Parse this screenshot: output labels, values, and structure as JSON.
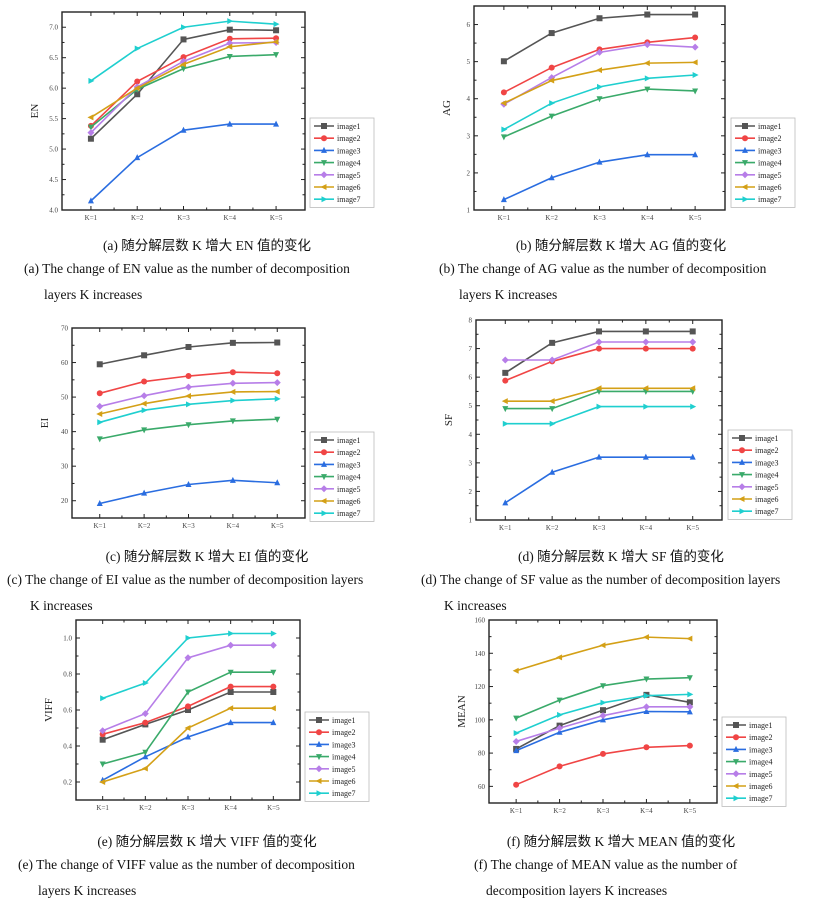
{
  "series_colors": {
    "image1": "#555555",
    "image2": "#f04545",
    "image3": "#2a6de0",
    "image4": "#3aaa6a",
    "image5": "#b77ee8",
    "image6": "#d4a017",
    "image7": "#1fcfcf"
  },
  "series_markers": {
    "image1": "square",
    "image2": "circle",
    "image3": "triangle-up",
    "image4": "triangle-down",
    "image5": "diamond",
    "image6": "triangle-left",
    "image7": "triangle-right"
  },
  "chart_data": [
    {
      "id": "a",
      "type": "line",
      "categories": [
        "K=1",
        "K=2",
        "K=3",
        "K=4",
        "K=5"
      ],
      "ylabel": "EN",
      "xlabel": "",
      "ylim": [
        4.0,
        7.25
      ],
      "yticks": [
        4.0,
        4.5,
        5.0,
        5.5,
        6.0,
        6.5,
        7.0
      ],
      "ytick_labels": [
        "4.0",
        "4.5",
        "5.0",
        "5.5",
        "6.0",
        "6.5",
        "7.0"
      ],
      "legend": "right-bottom-outside",
      "series": [
        {
          "name": "image1",
          "values": [
            5.17,
            5.9,
            6.8,
            6.96,
            6.95
          ]
        },
        {
          "name": "image2",
          "values": [
            5.38,
            6.11,
            6.51,
            6.81,
            6.82
          ]
        },
        {
          "name": "image3",
          "values": [
            4.15,
            4.86,
            5.31,
            5.41,
            5.41
          ]
        },
        {
          "name": "image4",
          "values": [
            5.36,
            5.98,
            6.32,
            6.52,
            6.55
          ]
        },
        {
          "name": "image5",
          "values": [
            5.27,
            6.02,
            6.44,
            6.74,
            6.75
          ]
        },
        {
          "name": "image6",
          "values": [
            5.52,
            6.0,
            6.39,
            6.68,
            6.76
          ]
        },
        {
          "name": "image7",
          "values": [
            6.12,
            6.65,
            7.0,
            7.1,
            7.05
          ]
        }
      ],
      "caption_zh": "(a)  随分解层数 K 增大 EN 值的变化",
      "caption_en_line1": "(a) The change of EN value as the number of decomposition",
      "caption_en_line2": "layers K increases"
    },
    {
      "id": "b",
      "type": "line",
      "categories": [
        "K=1",
        "K=2",
        "K=3",
        "K=4",
        "K=5"
      ],
      "ylabel": "AG",
      "xlabel": "",
      "ylim": [
        1,
        6.5
      ],
      "yticks": [
        1,
        2,
        3,
        4,
        5,
        6
      ],
      "ytick_labels": [
        "1",
        "2",
        "3",
        "4",
        "5",
        "6"
      ],
      "legend": "right-bottom-outside",
      "series": [
        {
          "name": "image1",
          "values": [
            5.01,
            5.77,
            6.17,
            6.27,
            6.27
          ]
        },
        {
          "name": "image2",
          "values": [
            4.17,
            4.84,
            5.33,
            5.52,
            5.65
          ]
        },
        {
          "name": "image3",
          "values": [
            1.28,
            1.87,
            2.29,
            2.49,
            2.49
          ]
        },
        {
          "name": "image4",
          "values": [
            2.97,
            3.53,
            4.0,
            4.26,
            4.21
          ]
        },
        {
          "name": "image5",
          "values": [
            3.85,
            4.57,
            5.25,
            5.46,
            5.39
          ]
        },
        {
          "name": "image6",
          "values": [
            3.88,
            4.49,
            4.77,
            4.96,
            4.98
          ]
        },
        {
          "name": "image7",
          "values": [
            3.17,
            3.88,
            4.32,
            4.55,
            4.64
          ]
        }
      ],
      "caption_zh": "(b)  随分解层数 K 增大 AG 值的变化",
      "caption_en_line1": "(b) The change of AG value as the number of decomposition",
      "caption_en_line2": "layers K increases"
    },
    {
      "id": "c",
      "type": "line",
      "categories": [
        "K=1",
        "K=2",
        "K=3",
        "K=4",
        "K=5"
      ],
      "ylabel": "EI",
      "xlabel": "",
      "ylim": [
        15,
        70
      ],
      "yticks": [
        20,
        30,
        40,
        50,
        60,
        70
      ],
      "ytick_labels": [
        "20",
        "30",
        "40",
        "50",
        "60",
        "70"
      ],
      "legend": "right-bottom-outside",
      "series": [
        {
          "name": "image1",
          "values": [
            59.5,
            62.1,
            64.5,
            65.7,
            65.8
          ]
        },
        {
          "name": "image2",
          "values": [
            51.1,
            54.5,
            56.1,
            57.2,
            56.9
          ]
        },
        {
          "name": "image3",
          "values": [
            19.2,
            22.2,
            24.7,
            25.9,
            25.2
          ]
        },
        {
          "name": "image4",
          "values": [
            37.9,
            40.5,
            42.0,
            43.1,
            43.6
          ]
        },
        {
          "name": "image5",
          "values": [
            47.3,
            50.4,
            52.9,
            54.0,
            54.2
          ]
        },
        {
          "name": "image6",
          "values": [
            45.1,
            48.1,
            50.3,
            51.5,
            51.6
          ]
        },
        {
          "name": "image7",
          "values": [
            42.7,
            46.2,
            47.9,
            49.0,
            49.5
          ]
        }
      ],
      "caption_zh": "(c)  随分解层数 K 增大 EI 值的变化",
      "caption_en_line1": "(c) The change of EI value as the number of decomposition layers",
      "caption_en_line2": "K increases"
    },
    {
      "id": "d",
      "type": "line",
      "categories": [
        "K=1",
        "K=2",
        "K=3",
        "K=4",
        "K=5"
      ],
      "ylabel": "SF",
      "xlabel": "",
      "ylim": [
        1,
        8
      ],
      "yticks": [
        1,
        2,
        3,
        4,
        5,
        6,
        7,
        8
      ],
      "ytick_labels": [
        "1",
        "2",
        "3",
        "4",
        "5",
        "6",
        "7",
        "8"
      ],
      "legend": "right-bottom-outside",
      "series": [
        {
          "name": "image1",
          "values": [
            6.15,
            7.2,
            7.6,
            7.6,
            7.6
          ]
        },
        {
          "name": "image2",
          "values": [
            5.88,
            6.55,
            7.0,
            7.0,
            7.0
          ]
        },
        {
          "name": "image3",
          "values": [
            1.6,
            2.67,
            3.2,
            3.2,
            3.2
          ]
        },
        {
          "name": "image4",
          "values": [
            4.9,
            4.9,
            5.5,
            5.5,
            5.5
          ]
        },
        {
          "name": "image5",
          "values": [
            6.6,
            6.6,
            7.23,
            7.23,
            7.23
          ]
        },
        {
          "name": "image6",
          "values": [
            5.16,
            5.16,
            5.61,
            5.61,
            5.61
          ]
        },
        {
          "name": "image7",
          "values": [
            4.37,
            4.37,
            4.97,
            4.97,
            4.97
          ]
        }
      ],
      "caption_zh": "(d)  随分解层数 K 增大 SF 值的变化",
      "caption_en_line1": "(d) The change of SF value as the number of decomposition layers",
      "caption_en_line2": "K increases"
    },
    {
      "id": "e",
      "type": "line",
      "categories": [
        "K=1",
        "K=2",
        "K=3",
        "K=4",
        "K=5"
      ],
      "ylabel": "VIFF",
      "xlabel": "",
      "ylim": [
        0.1,
        1.1
      ],
      "yticks": [
        0.2,
        0.4,
        0.6,
        0.8,
        1.0
      ],
      "ytick_labels": [
        "0.2",
        "0.4",
        "0.6",
        "0.8",
        "1.0"
      ],
      "legend": "right-bottom-outside",
      "series": [
        {
          "name": "image1",
          "values": [
            0.435,
            0.52,
            0.6,
            0.7,
            0.7
          ]
        },
        {
          "name": "image2",
          "values": [
            0.465,
            0.53,
            0.62,
            0.73,
            0.73
          ]
        },
        {
          "name": "image3",
          "values": [
            0.21,
            0.34,
            0.45,
            0.53,
            0.53
          ]
        },
        {
          "name": "image4",
          "values": [
            0.3,
            0.365,
            0.7,
            0.81,
            0.81
          ]
        },
        {
          "name": "image5",
          "values": [
            0.485,
            0.58,
            0.89,
            0.96,
            0.96
          ]
        },
        {
          "name": "image6",
          "values": [
            0.2,
            0.275,
            0.5,
            0.61,
            0.61
          ]
        },
        {
          "name": "image7",
          "values": [
            0.665,
            0.75,
            1.0,
            1.025,
            1.025
          ]
        }
      ],
      "caption_zh": "(e)  随分解层数 K 增大 VIFF 值的变化",
      "caption_en_line1": "(e) The change of VIFF value as the number of decomposition",
      "caption_en_line2": "layers K increases"
    },
    {
      "id": "f",
      "type": "line",
      "categories": [
        "K=1",
        "K=2",
        "K=3",
        "K=4",
        "K=5"
      ],
      "ylabel": "MEAN",
      "xlabel": "",
      "ylim": [
        50,
        160
      ],
      "yticks": [
        60,
        80,
        100,
        120,
        140,
        160
      ],
      "ytick_labels": [
        "60",
        "80",
        "100",
        "120",
        "140",
        "160"
      ],
      "legend": "right-bottom-outside",
      "series": [
        {
          "name": "image1",
          "values": [
            82.5,
            96.5,
            105.8,
            115.0,
            110.5
          ]
        },
        {
          "name": "image2",
          "values": [
            61.0,
            72.0,
            79.5,
            83.5,
            84.5
          ]
        },
        {
          "name": "image3",
          "values": [
            81.5,
            92.5,
            100.0,
            105.0,
            104.8
          ]
        },
        {
          "name": "image4",
          "values": [
            101.0,
            111.8,
            120.5,
            124.5,
            125.3
          ]
        },
        {
          "name": "image5",
          "values": [
            87.0,
            95.0,
            102.5,
            107.8,
            107.8
          ]
        },
        {
          "name": "image6",
          "values": [
            129.5,
            137.5,
            144.8,
            149.7,
            148.8
          ]
        },
        {
          "name": "image7",
          "values": [
            92.0,
            103.0,
            110.3,
            114.5,
            115.3
          ]
        }
      ],
      "caption_zh": "(f)  随分解层数 K 增大 MEAN 值的变化",
      "caption_en_line1": "(f) The change of MEAN value as the number of",
      "caption_en_line2": "decomposition layers K increases"
    }
  ]
}
